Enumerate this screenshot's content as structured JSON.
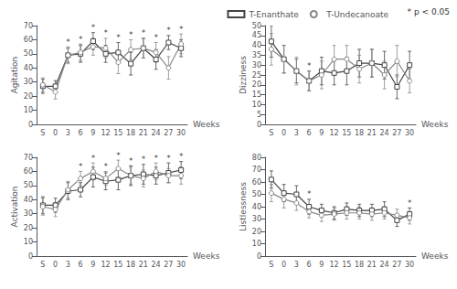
{
  "chart_data": [
    {
      "type": "line",
      "y_label": "Agitation",
      "x_label": "Weeks",
      "categories": [
        "S",
        "0",
        "3",
        "6",
        "9",
        "12",
        "15",
        "18",
        "21",
        "24",
        "27",
        "30"
      ],
      "series": [
        {
          "name": "T-Enanthate",
          "color": "#444444",
          "marker": "square",
          "values": [
            27,
            27,
            49,
            50,
            59,
            50,
            51,
            43,
            54,
            46,
            58,
            54
          ],
          "errors": [
            5,
            4,
            5,
            6,
            6,
            6,
            7,
            8,
            7,
            7,
            5,
            6
          ]
        },
        {
          "name": "T-Undecanoate",
          "color": "#888888",
          "marker": "circle",
          "values": [
            28,
            23,
            49,
            51,
            55,
            54,
            44,
            53,
            54,
            51,
            40,
            57
          ],
          "errors": [
            5,
            5,
            6,
            6,
            6,
            7,
            8,
            7,
            7,
            7,
            8,
            7
          ]
        }
      ],
      "ylim": [
        0,
        70
      ],
      "yticks": [
        0,
        10,
        20,
        30,
        40,
        50,
        60,
        70
      ],
      "grid": false,
      "annotations": [
        {
          "text": "*",
          "x": "3",
          "y": 55
        },
        {
          "text": "*",
          "x": "6",
          "y": 57
        },
        {
          "text": "*",
          "x": "9",
          "y": 65
        },
        {
          "text": "*",
          "x": "12",
          "y": 61
        },
        {
          "text": "*",
          "x": "15",
          "y": 58
        },
        {
          "text": "*",
          "x": "18",
          "y": 60
        },
        {
          "text": "*",
          "x": "21",
          "y": 61
        },
        {
          "text": "*",
          "x": "24",
          "y": 58
        },
        {
          "text": "*",
          "x": "27",
          "y": 63
        },
        {
          "text": "*",
          "x": "30",
          "y": 64
        }
      ]
    },
    {
      "type": "line",
      "y_label": "Dizziness",
      "x_label": "Weeks",
      "categories": [
        "S",
        "0",
        "3",
        "6",
        "9",
        "12",
        "15",
        "18",
        "21",
        "24",
        "27",
        "30"
      ],
      "series": [
        {
          "name": "T-Enanthate",
          "color": "#444444",
          "marker": "square",
          "values": [
            42,
            33,
            27,
            22,
            27,
            26,
            27,
            31,
            31,
            30,
            19,
            30
          ],
          "errors": [
            8,
            7,
            6,
            5,
            7,
            6,
            7,
            7,
            7,
            7,
            6,
            7
          ]
        },
        {
          "name": "T-Undecanoate",
          "color": "#888888",
          "marker": "circle",
          "values": [
            38,
            33,
            27,
            22,
            25,
            33,
            33,
            28,
            31,
            25,
            32,
            22
          ],
          "errors": [
            8,
            7,
            7,
            5,
            7,
            7,
            7,
            7,
            7,
            7,
            8,
            6
          ]
        }
      ],
      "ylim": [
        0,
        50
      ],
      "yticks": [
        0,
        5,
        10,
        15,
        20,
        25,
        30,
        35,
        40,
        45,
        50
      ],
      "grid": false,
      "legend": "upper right",
      "annotations": [
        {
          "text": "*",
          "x": "6",
          "y": 27
        },
        {
          "text": "* p < 0.05"
        }
      ]
    },
    {
      "type": "line",
      "y_label": "Activation",
      "x_label": "Weeks",
      "categories": [
        "S",
        "0",
        "3",
        "6",
        "9",
        "12",
        "15",
        "18",
        "21",
        "24",
        "27",
        "30"
      ],
      "series": [
        {
          "name": "T-Enanthate",
          "color": "#444444",
          "marker": "square",
          "values": [
            36,
            36,
            46,
            47,
            56,
            53,
            54,
            57,
            58,
            57,
            59,
            61
          ],
          "errors": [
            6,
            5,
            6,
            5,
            7,
            6,
            7,
            7,
            7,
            6,
            7,
            6
          ]
        },
        {
          "name": "T-Undecanoate",
          "color": "#888888",
          "marker": "circle",
          "values": [
            35,
            33,
            47,
            55,
            60,
            55,
            62,
            57,
            55,
            60,
            57,
            57
          ],
          "errors": [
            6,
            5,
            6,
            5,
            6,
            5,
            6,
            6,
            6,
            6,
            5,
            6
          ]
        }
      ],
      "ylim": [
        0,
        70
      ],
      "yticks": [
        0,
        10,
        20,
        30,
        40,
        50,
        60,
        70
      ],
      "grid": false,
      "annotations": [
        {
          "text": "*",
          "x": "6",
          "y": 60
        },
        {
          "text": "*",
          "x": "9",
          "y": 66
        },
        {
          "text": "*",
          "x": "12",
          "y": 60
        },
        {
          "text": "*",
          "x": "15",
          "y": 68
        },
        {
          "text": "*",
          "x": "18",
          "y": 64
        },
        {
          "text": "*",
          "x": "21",
          "y": 65
        },
        {
          "text": "*",
          "x": "24",
          "y": 66
        },
        {
          "text": "*",
          "x": "27",
          "y": 66
        },
        {
          "text": "*",
          "x": "30",
          "y": 67
        }
      ]
    },
    {
      "type": "line",
      "y_label": "Listlessness",
      "x_label": "Weeks",
      "categories": [
        "S",
        "0",
        "3",
        "6",
        "9",
        "12",
        "15",
        "18",
        "21",
        "24",
        "27",
        "30"
      ],
      "series": [
        {
          "name": "T-Enanthate",
          "color": "#444444",
          "marker": "square",
          "values": [
            62,
            51,
            50,
            40,
            37,
            35,
            38,
            37,
            37,
            38,
            29,
            34
          ],
          "errors": [
            7,
            7,
            7,
            6,
            5,
            5,
            5,
            5,
            5,
            6,
            5,
            5
          ]
        },
        {
          "name": "T-Undecanoate",
          "color": "#888888",
          "marker": "circle",
          "values": [
            51,
            46,
            43,
            36,
            33,
            34,
            35,
            35,
            34,
            35,
            33,
            31
          ],
          "errors": [
            7,
            7,
            6,
            5,
            5,
            5,
            5,
            5,
            5,
            5,
            5,
            5
          ]
        }
      ],
      "ylim": [
        0,
        80
      ],
      "yticks": [
        0,
        10,
        20,
        30,
        40,
        50,
        60,
        70,
        80
      ],
      "grid": false,
      "annotations": [
        {
          "text": "*",
          "x": "6",
          "y": 46
        },
        {
          "text": "*",
          "x": "30",
          "y": 39
        }
      ]
    }
  ]
}
